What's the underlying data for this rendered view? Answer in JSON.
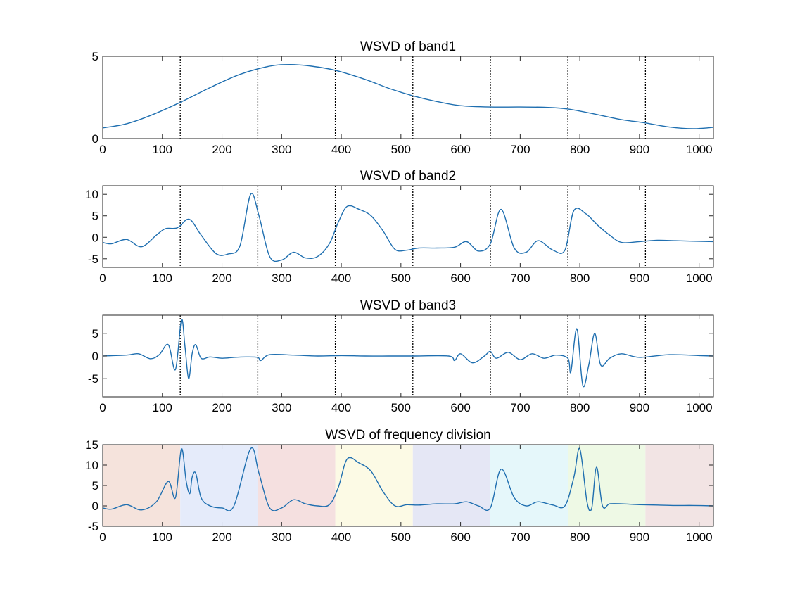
{
  "figure_title": "",
  "colors": {
    "line": "#1f6fb0",
    "axes": "#262626",
    "divider": "#000000",
    "bands": [
      "#f5e3dc",
      "#e5ebfa",
      "#f5e0e0",
      "#fcfae5",
      "#e5e7f5",
      "#e5f7fa",
      "#eef9e5",
      "#f2e4e4"
    ]
  },
  "chart_data": [
    {
      "type": "line",
      "title": "WSVD of band1",
      "xlim": [
        0,
        1024
      ],
      "ylim": [
        0,
        5
      ],
      "xticks": [
        0,
        100,
        200,
        300,
        400,
        500,
        600,
        700,
        800,
        900,
        1000
      ],
      "yticks": [
        0,
        5
      ],
      "dividers": [
        130,
        260,
        390,
        520,
        650,
        780,
        910
      ],
      "series": [
        {
          "name": "band1",
          "x": [
            0,
            40,
            80,
            130,
            180,
            230,
            280,
            315,
            350,
            390,
            440,
            480,
            520,
            560,
            600,
            650,
            700,
            740,
            780,
            830,
            870,
            910,
            950,
            990,
            1024
          ],
          "values": [
            0.65,
            0.9,
            1.4,
            2.2,
            3.1,
            3.9,
            4.4,
            4.5,
            4.4,
            4.15,
            3.6,
            3.05,
            2.6,
            2.25,
            2.0,
            1.92,
            1.92,
            1.9,
            1.8,
            1.45,
            1.15,
            0.95,
            0.7,
            0.6,
            0.68
          ]
        }
      ]
    },
    {
      "type": "line",
      "title": "WSVD of band2",
      "xlim": [
        0,
        1024
      ],
      "ylim": [
        -7,
        12
      ],
      "xticks": [
        0,
        100,
        200,
        300,
        400,
        500,
        600,
        700,
        800,
        900,
        1000
      ],
      "yticks": [
        -5,
        0,
        5,
        10
      ],
      "dividers": [
        130,
        260,
        390,
        520,
        650,
        780,
        910
      ],
      "series": [
        {
          "name": "band2",
          "x": [
            0,
            15,
            40,
            65,
            90,
            105,
            125,
            145,
            165,
            190,
            210,
            230,
            248,
            262,
            280,
            300,
            320,
            340,
            360,
            380,
            395,
            410,
            430,
            450,
            470,
            490,
            510,
            530,
            560,
            590,
            610,
            630,
            650,
            668,
            690,
            710,
            730,
            755,
            775,
            790,
            810,
            830,
            850,
            870,
            900,
            930,
            960,
            990,
            1024
          ],
          "values": [
            -1.2,
            -1.5,
            -0.5,
            -2.2,
            0.5,
            2.0,
            2.2,
            4.2,
            0.5,
            -3.8,
            -3.9,
            -2.0,
            10.0,
            5.0,
            -4.5,
            -5.3,
            -3.5,
            -4.8,
            -4.5,
            -1.5,
            3.5,
            7.2,
            6.5,
            5.0,
            1.5,
            -2.8,
            -3.0,
            -2.5,
            -2.5,
            -2.3,
            -1.0,
            -3.2,
            -1.5,
            6.5,
            -2.5,
            -3.5,
            -0.8,
            -3.0,
            -3.0,
            6.2,
            5.5,
            2.8,
            0.5,
            -1.2,
            -1.0,
            -0.7,
            -0.8,
            -0.9,
            -1.0
          ]
        }
      ]
    },
    {
      "type": "line",
      "title": "WSVD of band3",
      "xlim": [
        0,
        1024
      ],
      "ylim": [
        -9,
        9
      ],
      "xticks": [
        0,
        100,
        200,
        300,
        400,
        500,
        600,
        700,
        800,
        900,
        1000
      ],
      "yticks": [
        -5,
        0,
        5
      ],
      "dividers": [
        130,
        260,
        390,
        520,
        650,
        780,
        910
      ],
      "series": [
        {
          "name": "band3",
          "x": [
            0,
            40,
            60,
            80,
            95,
            110,
            122,
            132,
            138,
            144,
            150,
            156,
            165,
            180,
            200,
            220,
            240,
            260,
            265,
            280,
            320,
            360,
            400,
            440,
            480,
            520,
            580,
            590,
            600,
            620,
            640,
            650,
            660,
            680,
            700,
            720,
            740,
            760,
            780,
            785,
            795,
            805,
            815,
            825,
            835,
            850,
            870,
            900,
            950,
            1000,
            1024
          ],
          "values": [
            0,
            0.2,
            0.5,
            -0.6,
            0.3,
            2.5,
            -3.0,
            8.0,
            2.0,
            -5.0,
            0.5,
            2.5,
            -0.5,
            -0.2,
            -0.5,
            -0.3,
            -0.2,
            -0.3,
            -1.0,
            0.3,
            0.2,
            0,
            0.1,
            0,
            0,
            0,
            0,
            -1.0,
            0.5,
            -1.5,
            0,
            1.0,
            -0.5,
            0.8,
            -0.8,
            0.5,
            -0.5,
            0.2,
            -0.5,
            -3.5,
            6.0,
            -6.5,
            -2.0,
            5.0,
            -2.0,
            -0.5,
            0.5,
            -0.3,
            0.3,
            0.1,
            0
          ]
        }
      ]
    },
    {
      "type": "area",
      "title": "WSVD of frequency division",
      "xlim": [
        0,
        1024
      ],
      "ylim": [
        -5,
        15
      ],
      "xticks": [
        0,
        100,
        200,
        300,
        400,
        500,
        600,
        700,
        800,
        900,
        1000
      ],
      "yticks": [
        -5,
        0,
        5,
        10,
        15
      ],
      "bands": [
        [
          0,
          130
        ],
        [
          130,
          260
        ],
        [
          260,
          390
        ],
        [
          390,
          520
        ],
        [
          520,
          650
        ],
        [
          650,
          780
        ],
        [
          780,
          910
        ],
        [
          910,
          1024
        ]
      ],
      "series": [
        {
          "name": "frequency division",
          "x": [
            0,
            15,
            40,
            65,
            90,
            110,
            122,
            132,
            140,
            146,
            150,
            156,
            165,
            180,
            200,
            220,
            248,
            262,
            280,
            300,
            320,
            340,
            360,
            380,
            395,
            410,
            430,
            450,
            470,
            490,
            510,
            530,
            560,
            590,
            610,
            630,
            650,
            668,
            690,
            710,
            730,
            755,
            775,
            790,
            800,
            812,
            820,
            828,
            838,
            850,
            870,
            900,
            930,
            960,
            990,
            1024
          ],
          "values": [
            -0.5,
            -0.8,
            0.3,
            -1.0,
            1.0,
            6.0,
            2.0,
            14.0,
            6.0,
            3.0,
            7.0,
            8.0,
            2.0,
            0,
            -0.5,
            0,
            14.0,
            8.0,
            -0.5,
            -0.5,
            1.5,
            0.5,
            0,
            0.3,
            4.5,
            11.5,
            10.5,
            8.5,
            3.5,
            0,
            0.3,
            0.2,
            0.5,
            0.5,
            1.0,
            0,
            -0.5,
            9.0,
            2.0,
            0,
            1.0,
            0.2,
            0,
            7.0,
            14.0,
            1.0,
            -0.5,
            9.5,
            0,
            0.5,
            0.5,
            0.3,
            0.2,
            0.1,
            0.1,
            0
          ]
        }
      ]
    }
  ]
}
